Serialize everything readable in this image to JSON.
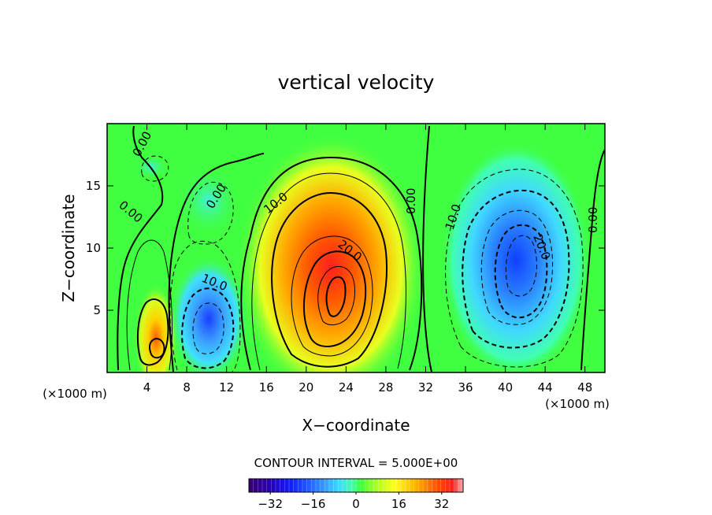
{
  "chart_data": {
    "type": "heatmap",
    "title": "vertical velocity",
    "xlabel": "X−coordinate",
    "ylabel": "Z−coordinate",
    "x_unit_left": "(×1000 m)",
    "x_unit_right": "(×1000 m)",
    "xlim": [
      0,
      50
    ],
    "ylim": [
      0,
      20
    ],
    "x_ticks": [
      4,
      8,
      12,
      16,
      20,
      24,
      28,
      32,
      36,
      40,
      44,
      48
    ],
    "y_ticks": [
      5,
      10,
      15
    ],
    "contour_interval_text": "CONTOUR INTERVAL = 5.000E+00",
    "contour_interval": 5.0,
    "colorbar": {
      "min": -40,
      "max": 40,
      "ticks": [
        -32,
        -16,
        0,
        16,
        32
      ],
      "tick_labels": [
        "−32",
        "−16",
        "0",
        "16",
        "32"
      ],
      "colors": [
        "#3a006a",
        "#2800b8",
        "#1020ff",
        "#2a80ff",
        "#40d8ff",
        "#40ffb0",
        "#40ff40",
        "#b0ff20",
        "#ffff20",
        "#ffb000",
        "#ff5000",
        "#ff1e1e",
        "#ffb0b0"
      ]
    },
    "features": [
      {
        "kind": "updraft",
        "x": 22.5,
        "z": 6.5,
        "peak": 35
      },
      {
        "kind": "updraft",
        "x": 5.0,
        "z": 2.0,
        "peak": 20
      },
      {
        "kind": "downdraft",
        "x": 41.5,
        "z": 8.5,
        "peak": -33
      },
      {
        "kind": "downdraft",
        "x": 10.0,
        "z": 3.5,
        "peak": -22
      }
    ],
    "contour_labels": [
      "0.00",
      "0.00",
      "0.00",
      "0.00",
      "0.00",
      "10.0",
      "20.0",
      "10.0",
      "10.0",
      "20.0"
    ]
  }
}
